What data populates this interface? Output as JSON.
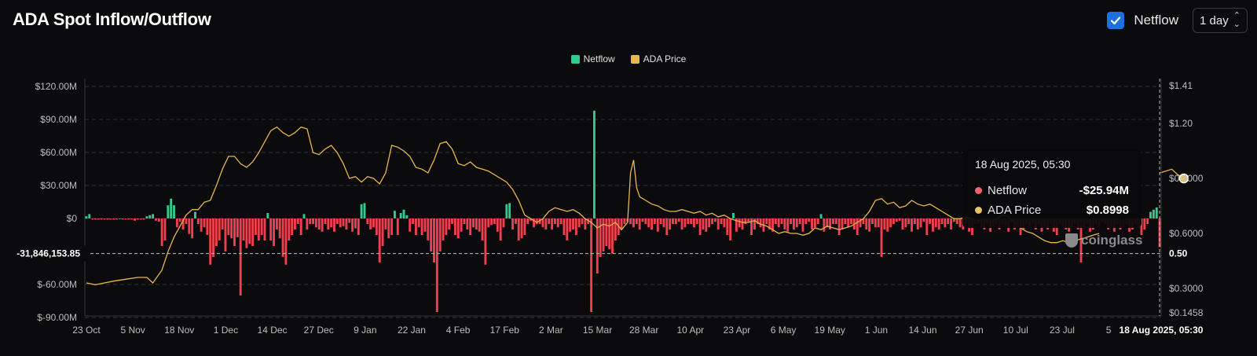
{
  "title": "ADA Spot Inflow/Outflow",
  "controls": {
    "netflow_checked": true,
    "netflow_label": "Netflow",
    "interval": "1 day"
  },
  "colors": {
    "inflow": "#2ecc8e",
    "outflow": "#f0404f",
    "price": "#e8b84d",
    "accent": "#1e6fe0"
  },
  "tooltip": {
    "date": "18 Aug 2025, 05:30",
    "netflow_label": "Netflow",
    "netflow_value": "-$25.94M",
    "price_label": "ADA Price",
    "price_value": "$0.8998"
  },
  "watermark": "coinglass",
  "chart_data": {
    "type": "bar",
    "title": "ADA Spot Inflow/Outflow",
    "legend": [
      "Netflow",
      "ADA Price"
    ],
    "legend_position": "top-center",
    "grid": true,
    "x_ticks": [
      "23 Oct",
      "5 Nov",
      "18 Nov",
      "1 Dec",
      "14 Dec",
      "27 Dec",
      "9 Jan",
      "22 Jan",
      "4 Feb",
      "17 Feb",
      "2 Mar",
      "15 Mar",
      "28 Mar",
      "10 Apr",
      "23 Apr",
      "6 May",
      "19 May",
      "1 Jun",
      "14 Jun",
      "27 Jun",
      "10 Jul",
      "23 Jul",
      "5"
    ],
    "x_cursor_label": "18 Aug 2025, 05:30",
    "y_left_ticks": [
      "$120.00M",
      "$90.00M",
      "$60.00M",
      "$30.00M",
      "$0",
      "$-60.00M",
      "$-90.00M"
    ],
    "y_left_tick_values": [
      120,
      90,
      60,
      30,
      0,
      -60,
      -90
    ],
    "y_left_range": [
      -90,
      120
    ],
    "y_right_ticks": [
      "$1.41",
      "$1.20",
      "$0.9000",
      "$0.6000",
      "$0.3000",
      "$0.1458"
    ],
    "y_right_tick_values": [
      1.41,
      1.2,
      0.9,
      0.6,
      0.3,
      0.1458
    ],
    "y_right_range": [
      0.1458,
      1.41
    ],
    "crosshair": {
      "left_label": "-31,846,153.85",
      "left_value": -31.85,
      "right_label": "0.50"
    },
    "netflow_unit": "$M",
    "netflow_series": {
      "name": "Netflow",
      "values": [
        2,
        4,
        -1,
        -1,
        -1,
        -1,
        -1,
        -1,
        -1,
        -1,
        -1,
        0,
        -1,
        -1,
        -1,
        -1,
        -2,
        -1,
        -1,
        -1,
        2,
        3,
        4,
        -2,
        -3,
        -25,
        -20,
        12,
        18,
        12,
        -8,
        -3,
        -10,
        -5,
        -14,
        -18,
        6,
        -5,
        -12,
        -8,
        -15,
        -42,
        -35,
        -25,
        -20,
        -10,
        -30,
        -15,
        -18,
        -25,
        -17,
        -70,
        -20,
        -27,
        -23,
        -25,
        -15,
        -20,
        -15,
        -20,
        5,
        -20,
        -25,
        -10,
        -18,
        -35,
        -42,
        -20,
        -15,
        -10,
        -5,
        -15,
        4,
        -10,
        -5,
        -5,
        -8,
        -10,
        -12,
        -5,
        -10,
        -8,
        -12,
        -5,
        -8,
        -7,
        -10,
        -4,
        -12,
        -9,
        -15,
        13,
        14,
        -5,
        -10,
        -8,
        -15,
        -40,
        -25,
        -10,
        -18,
        -15,
        7,
        -15,
        5,
        8,
        3,
        -12,
        -5,
        -15,
        -8,
        -15,
        -12,
        -20,
        -30,
        -40,
        -85,
        -30,
        -20,
        -15,
        -10,
        -5,
        -15,
        -18,
        -12,
        -5,
        -10,
        -15,
        -8,
        -10,
        -12,
        -20,
        -42,
        -8,
        -6,
        -5,
        -12,
        -20,
        -8,
        13,
        14,
        -10,
        -5,
        -20,
        -18,
        -15,
        -5,
        -2,
        -8,
        -5,
        -5,
        -8,
        -10,
        -5,
        -10,
        -5,
        -8,
        -5,
        -15,
        -20,
        -12,
        -10,
        -15,
        -8,
        -5,
        -10,
        -5,
        -85,
        98,
        -50,
        -35,
        -30,
        -25,
        -28,
        -32,
        -20,
        -15,
        -10,
        -5,
        -3,
        -5,
        -8,
        -5,
        -10,
        -3,
        -5,
        -8,
        -10,
        -5,
        -12,
        -5,
        -8,
        -15,
        -10,
        -5,
        -5,
        -3,
        -10,
        -8,
        -5,
        -5,
        -8,
        -5,
        -15,
        -10,
        -12,
        -8,
        -5,
        -3,
        -10,
        -5,
        -8,
        -15,
        -20,
        5,
        -12,
        -8,
        -10,
        -5,
        -3,
        -15,
        -10,
        -5,
        -8,
        -12,
        -5,
        -10,
        -12,
        -5,
        -8,
        -5,
        -10,
        -12,
        -5,
        -10,
        -8,
        -5,
        -12,
        -5,
        -3,
        -10,
        -8,
        -5,
        4,
        -12,
        -8,
        -10,
        -5,
        -5,
        -15,
        -10,
        -5,
        -8,
        -5,
        -10,
        -15,
        -8,
        -5,
        -10,
        -12,
        -5,
        -8,
        -8,
        -35,
        -10,
        -12,
        -8,
        -5,
        -3,
        -2,
        -10,
        -8,
        -5,
        -12,
        -5,
        -10,
        -8,
        -3,
        -15,
        -5,
        -12,
        -8,
        -10,
        -5,
        -8,
        -5,
        -10,
        -3,
        -5,
        -8,
        -10,
        -5,
        -12,
        -15,
        -5,
        -5,
        -8,
        -10,
        -5,
        -12,
        -8,
        -5,
        -10,
        -5,
        -8,
        -12,
        -3,
        -10,
        -5,
        -15,
        -10,
        -5,
        -8,
        -5,
        -10,
        -5,
        -12,
        -8,
        -10,
        -5,
        -12,
        -15,
        -5,
        -8,
        -10,
        -12,
        -8,
        -5,
        -10,
        -40,
        -8,
        -5,
        -12,
        -10,
        -5,
        -8,
        -3,
        -5,
        -10,
        -8,
        -12,
        -5,
        -10,
        -8,
        -5,
        -12,
        -10,
        -5,
        -8,
        -15,
        -10,
        -5,
        6,
        8,
        10,
        -26
      ]
    },
    "price_series": {
      "name": "ADA Price",
      "points": [
        {
          "x": 0,
          "y": 0.33
        },
        {
          "x": 3,
          "y": 0.32
        },
        {
          "x": 6,
          "y": 0.33
        },
        {
          "x": 9,
          "y": 0.34
        },
        {
          "x": 13,
          "y": 0.35
        },
        {
          "x": 17,
          "y": 0.36
        },
        {
          "x": 20,
          "y": 0.36
        },
        {
          "x": 22,
          "y": 0.33
        },
        {
          "x": 25,
          "y": 0.4
        },
        {
          "x": 27,
          "y": 0.5
        },
        {
          "x": 29,
          "y": 0.58
        },
        {
          "x": 31,
          "y": 0.64
        },
        {
          "x": 33,
          "y": 0.7
        },
        {
          "x": 35,
          "y": 0.73
        },
        {
          "x": 37,
          "y": 0.73
        },
        {
          "x": 39,
          "y": 0.77
        },
        {
          "x": 41,
          "y": 0.78
        },
        {
          "x": 43,
          "y": 0.86
        },
        {
          "x": 45,
          "y": 0.95
        },
        {
          "x": 47,
          "y": 1.02
        },
        {
          "x": 49,
          "y": 1.02
        },
        {
          "x": 51,
          "y": 0.98
        },
        {
          "x": 53,
          "y": 0.96
        },
        {
          "x": 55,
          "y": 0.99
        },
        {
          "x": 57,
          "y": 1.04
        },
        {
          "x": 59,
          "y": 1.1
        },
        {
          "x": 61,
          "y": 1.16
        },
        {
          "x": 63,
          "y": 1.18
        },
        {
          "x": 65,
          "y": 1.15
        },
        {
          "x": 67,
          "y": 1.13
        },
        {
          "x": 69,
          "y": 1.15
        },
        {
          "x": 71,
          "y": 1.18
        },
        {
          "x": 73,
          "y": 1.17
        },
        {
          "x": 75,
          "y": 1.04
        },
        {
          "x": 77,
          "y": 1.03
        },
        {
          "x": 79,
          "y": 1.06
        },
        {
          "x": 81,
          "y": 1.08
        },
        {
          "x": 83,
          "y": 1.04
        },
        {
          "x": 85,
          "y": 0.98
        },
        {
          "x": 87,
          "y": 0.9
        },
        {
          "x": 89,
          "y": 0.91
        },
        {
          "x": 91,
          "y": 0.88
        },
        {
          "x": 93,
          "y": 0.91
        },
        {
          "x": 95,
          "y": 0.9
        },
        {
          "x": 97,
          "y": 0.87
        },
        {
          "x": 99,
          "y": 0.93
        },
        {
          "x": 101,
          "y": 1.08
        },
        {
          "x": 103,
          "y": 1.07
        },
        {
          "x": 105,
          "y": 1.05
        },
        {
          "x": 107,
          "y": 1.02
        },
        {
          "x": 109,
          "y": 0.96
        },
        {
          "x": 111,
          "y": 0.95
        },
        {
          "x": 113,
          "y": 0.93
        },
        {
          "x": 115,
          "y": 1.0
        },
        {
          "x": 117,
          "y": 1.09
        },
        {
          "x": 119,
          "y": 1.1
        },
        {
          "x": 121,
          "y": 1.06
        },
        {
          "x": 123,
          "y": 0.98
        },
        {
          "x": 125,
          "y": 0.97
        },
        {
          "x": 127,
          "y": 0.99
        },
        {
          "x": 129,
          "y": 0.96
        },
        {
          "x": 131,
          "y": 0.95
        },
        {
          "x": 133,
          "y": 0.94
        },
        {
          "x": 135,
          "y": 0.92
        },
        {
          "x": 137,
          "y": 0.9
        },
        {
          "x": 139,
          "y": 0.88
        },
        {
          "x": 141,
          "y": 0.84
        },
        {
          "x": 143,
          "y": 0.78
        },
        {
          "x": 145,
          "y": 0.7
        },
        {
          "x": 147,
          "y": 0.68
        },
        {
          "x": 149,
          "y": 0.66
        },
        {
          "x": 151,
          "y": 0.68
        },
        {
          "x": 153,
          "y": 0.72
        },
        {
          "x": 155,
          "y": 0.74
        },
        {
          "x": 157,
          "y": 0.73
        },
        {
          "x": 159,
          "y": 0.72
        },
        {
          "x": 161,
          "y": 0.73
        },
        {
          "x": 163,
          "y": 0.71
        },
        {
          "x": 165,
          "y": 0.68
        },
        {
          "x": 167,
          "y": 0.66
        },
        {
          "x": 169,
          "y": 0.63
        },
        {
          "x": 171,
          "y": 0.65
        },
        {
          "x": 173,
          "y": 0.64
        },
        {
          "x": 175,
          "y": 0.66
        },
        {
          "x": 177,
          "y": 0.62
        },
        {
          "x": 179,
          "y": 0.66
        },
        {
          "x": 180,
          "y": 0.93
        },
        {
          "x": 181,
          "y": 1.0
        },
        {
          "x": 182,
          "y": 0.85
        },
        {
          "x": 183,
          "y": 0.8
        },
        {
          "x": 185,
          "y": 0.78
        },
        {
          "x": 187,
          "y": 0.76
        },
        {
          "x": 189,
          "y": 0.75
        },
        {
          "x": 191,
          "y": 0.73
        },
        {
          "x": 193,
          "y": 0.72
        },
        {
          "x": 195,
          "y": 0.72
        },
        {
          "x": 197,
          "y": 0.73
        },
        {
          "x": 199,
          "y": 0.72
        },
        {
          "x": 201,
          "y": 0.71
        },
        {
          "x": 203,
          "y": 0.72
        },
        {
          "x": 205,
          "y": 0.7
        },
        {
          "x": 207,
          "y": 0.71
        },
        {
          "x": 209,
          "y": 0.69
        },
        {
          "x": 211,
          "y": 0.7
        },
        {
          "x": 213,
          "y": 0.68
        },
        {
          "x": 215,
          "y": 0.67
        },
        {
          "x": 217,
          "y": 0.66
        },
        {
          "x": 219,
          "y": 0.66
        },
        {
          "x": 221,
          "y": 0.67
        },
        {
          "x": 223,
          "y": 0.65
        },
        {
          "x": 225,
          "y": 0.64
        },
        {
          "x": 227,
          "y": 0.62
        },
        {
          "x": 229,
          "y": 0.6
        },
        {
          "x": 231,
          "y": 0.61
        },
        {
          "x": 233,
          "y": 0.6
        },
        {
          "x": 235,
          "y": 0.6
        },
        {
          "x": 237,
          "y": 0.59
        },
        {
          "x": 239,
          "y": 0.6
        },
        {
          "x": 241,
          "y": 0.63
        },
        {
          "x": 243,
          "y": 0.62
        },
        {
          "x": 245,
          "y": 0.64
        },
        {
          "x": 247,
          "y": 0.63
        },
        {
          "x": 249,
          "y": 0.62
        },
        {
          "x": 251,
          "y": 0.63
        },
        {
          "x": 253,
          "y": 0.64
        },
        {
          "x": 255,
          "y": 0.66
        },
        {
          "x": 257,
          "y": 0.68
        },
        {
          "x": 259,
          "y": 0.72
        },
        {
          "x": 261,
          "y": 0.78
        },
        {
          "x": 263,
          "y": 0.79
        },
        {
          "x": 265,
          "y": 0.76
        },
        {
          "x": 267,
          "y": 0.77
        },
        {
          "x": 269,
          "y": 0.74
        },
        {
          "x": 271,
          "y": 0.75
        },
        {
          "x": 273,
          "y": 0.78
        },
        {
          "x": 275,
          "y": 0.76
        },
        {
          "x": 277,
          "y": 0.75
        },
        {
          "x": 279,
          "y": 0.76
        },
        {
          "x": 281,
          "y": 0.74
        },
        {
          "x": 283,
          "y": 0.72
        },
        {
          "x": 285,
          "y": 0.7
        },
        {
          "x": 287,
          "y": 0.68
        },
        {
          "x": 289,
          "y": 0.68
        },
        {
          "x": 291,
          "y": 0.69
        },
        {
          "x": 293,
          "y": 0.68
        },
        {
          "x": 295,
          "y": 0.67
        },
        {
          "x": 297,
          "y": 0.68
        },
        {
          "x": 299,
          "y": 0.66
        },
        {
          "x": 301,
          "y": 0.68
        },
        {
          "x": 303,
          "y": 0.7
        },
        {
          "x": 305,
          "y": 0.69
        },
        {
          "x": 307,
          "y": 0.66
        },
        {
          "x": 309,
          "y": 0.63
        },
        {
          "x": 311,
          "y": 0.61
        },
        {
          "x": 313,
          "y": 0.6
        },
        {
          "x": 315,
          "y": 0.58
        },
        {
          "x": 317,
          "y": 0.56
        },
        {
          "x": 319,
          "y": 0.55
        },
        {
          "x": 321,
          "y": 0.55
        },
        {
          "x": 323,
          "y": 0.56
        },
        {
          "x": 325,
          "y": 0.55
        },
        {
          "x": 327,
          "y": 0.56
        },
        {
          "x": 329,
          "y": 0.57
        },
        {
          "x": 331,
          "y": 0.58
        },
        {
          "x": 333,
          "y": 0.59
        },
        {
          "x": 335,
          "y": 0.6
        },
        {
          "x": 355,
          "y": 0.93
        },
        {
          "x": 357,
          "y": 0.94
        },
        {
          "x": 359,
          "y": 0.95
        },
        {
          "x": 361,
          "y": 0.92
        },
        {
          "x": 363,
          "y": 0.9
        }
      ]
    }
  }
}
